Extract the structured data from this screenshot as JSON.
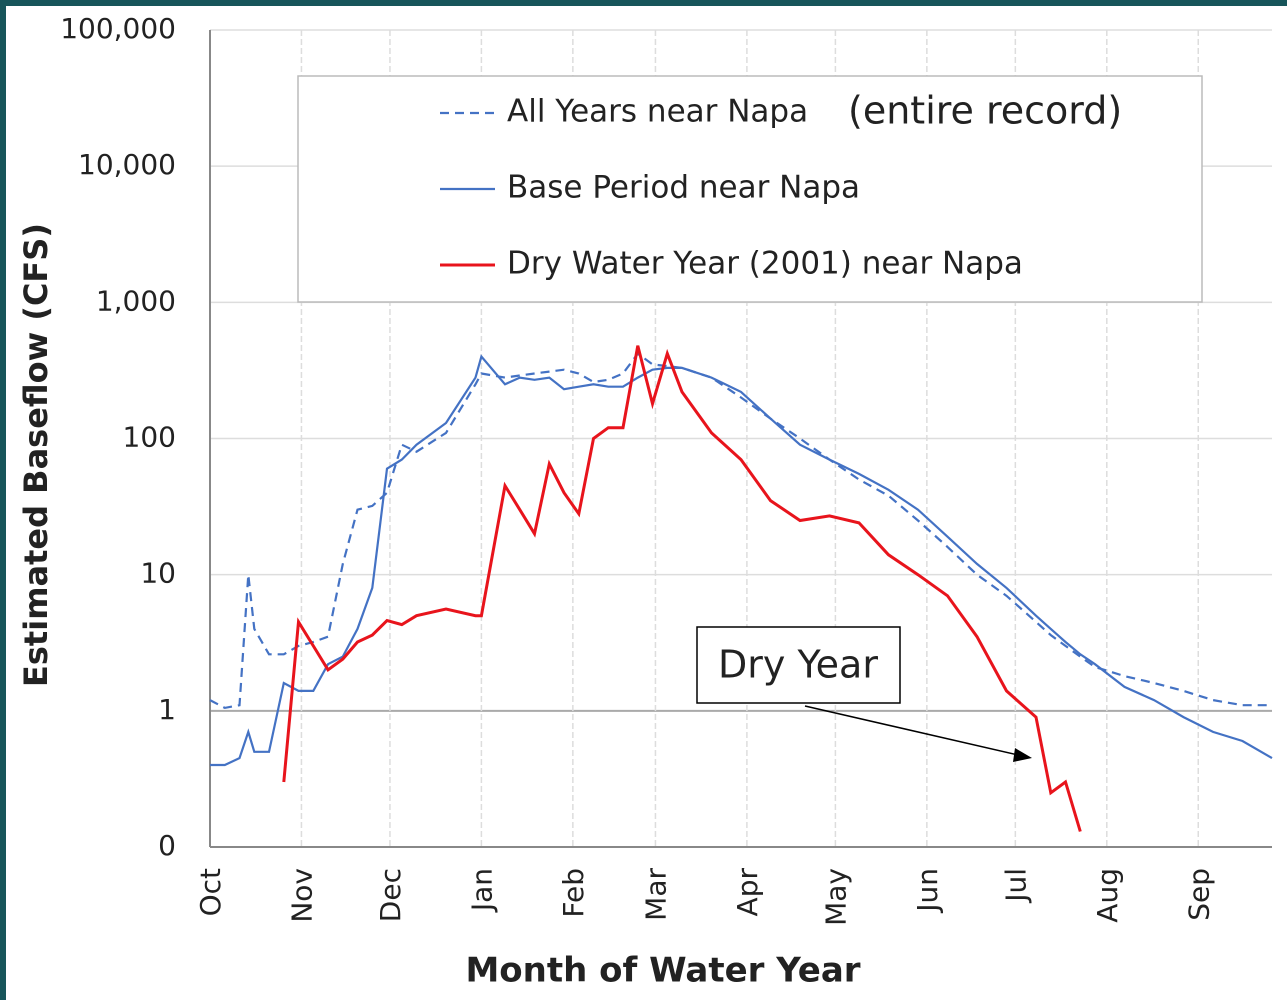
{
  "chart_data": {
    "type": "line",
    "x_label": "Month of Water Year",
    "y_label": "Estimated Baseflow (CFS)",
    "log_y": true,
    "grid": true,
    "xlim": [
      0,
      360
    ],
    "xticks": [
      {
        "value": 0,
        "label": "Oct"
      },
      {
        "value": 31,
        "label": "Nov"
      },
      {
        "value": 61,
        "label": "Dec"
      },
      {
        "value": 92,
        "label": "Jan"
      },
      {
        "value": 123,
        "label": "Feb"
      },
      {
        "value": 151,
        "label": "Mar"
      },
      {
        "value": 182,
        "label": "Apr"
      },
      {
        "value": 212,
        "label": "May"
      },
      {
        "value": 243,
        "label": "Jun"
      },
      {
        "value": 273,
        "label": "Jul"
      },
      {
        "value": 304,
        "label": "Aug"
      },
      {
        "value": 335,
        "label": "Sep"
      }
    ],
    "ylim": [
      0.1,
      100000
    ],
    "yticks": [
      {
        "value": 0.1,
        "label": "0"
      },
      1,
      10,
      100,
      {
        "value": 1000,
        "label": "1,000"
      },
      {
        "value": 10000,
        "label": "10,000"
      },
      {
        "value": 100000,
        "label": "100,000"
      }
    ],
    "x": [
      0,
      5,
      10,
      13,
      15,
      20,
      25,
      30,
      35,
      40,
      45,
      50,
      55,
      60,
      65,
      70,
      80,
      90,
      92,
      100,
      105,
      110,
      115,
      120,
      125,
      130,
      135,
      140,
      145,
      150,
      155,
      160,
      170,
      180,
      190,
      200,
      210,
      220,
      230,
      240,
      250,
      260,
      270,
      280,
      285,
      290,
      295,
      300,
      310,
      320,
      330,
      340,
      350,
      360
    ],
    "series": [
      {
        "name": "All Years near Napa",
        "color": "#4472c4",
        "dash": true,
        "values": [
          1.2,
          1.05,
          1.1,
          10,
          4,
          2.6,
          2.6,
          3,
          3.2,
          3.5,
          12,
          30,
          32,
          40,
          90,
          80,
          110,
          250,
          300,
          280,
          290,
          300,
          310,
          320,
          300,
          260,
          270,
          300,
          420,
          350,
          340,
          330,
          280,
          200,
          140,
          100,
          70,
          50,
          38,
          25,
          16,
          10,
          7,
          4.5,
          3.6,
          3,
          2.5,
          2.1,
          1.8,
          1.6,
          1.4,
          1.2,
          1.1,
          1.1
        ]
      },
      {
        "name": "Base Period near Napa",
        "color": "#4472c4",
        "dash": false,
        "values": [
          0.4,
          0.4,
          0.45,
          0.7,
          0.5,
          0.5,
          1.6,
          1.4,
          1.4,
          2.2,
          2.5,
          4,
          8,
          60,
          70,
          90,
          130,
          280,
          400,
          250,
          280,
          270,
          280,
          230,
          240,
          250,
          240,
          240,
          280,
          320,
          330,
          330,
          280,
          220,
          140,
          90,
          70,
          55,
          42,
          30,
          19,
          12,
          8,
          5,
          4,
          3.2,
          2.6,
          2.2,
          1.5,
          1.2,
          0.9,
          0.7,
          0.6,
          0.45
        ]
      },
      {
        "name": "Dry Water Year (2001) near Napa",
        "color": "#e8141c",
        "dash": false,
        "values": [
          null,
          null,
          null,
          null,
          null,
          null,
          0.3,
          4.5,
          3,
          2,
          2.4,
          3.2,
          3.6,
          4.6,
          4.3,
          5,
          5.6,
          5,
          5,
          45,
          30,
          20,
          65,
          40,
          28,
          100,
          120,
          120,
          480,
          180,
          420,
          220,
          110,
          70,
          35,
          25,
          27,
          24,
          14,
          10,
          7,
          3.5,
          1.4,
          0.9,
          0.25,
          0.3,
          0.13,
          null,
          null,
          null,
          null,
          null,
          null,
          null
        ]
      }
    ],
    "annotations": [
      "(entire record)",
      "Dry Year"
    ]
  }
}
